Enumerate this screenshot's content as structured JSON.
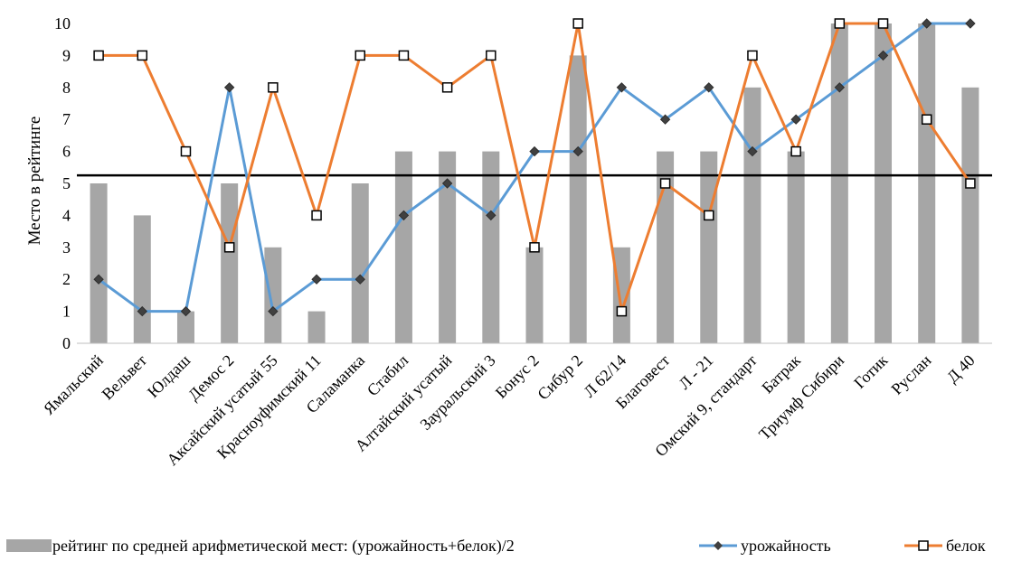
{
  "chart_data": {
    "type": "bar+line",
    "ylabel": "Место в рейтинге",
    "ylim": [
      0,
      10
    ],
    "yticks": [
      "0",
      "1",
      "2",
      "3",
      "4",
      "5",
      "6",
      "7",
      "8",
      "9",
      "10"
    ],
    "categories": [
      "Ямальский",
      "Вельвет",
      "Юлдаш",
      "Демос 2",
      "Аксайский усатый 55",
      "Красноуфимский 11",
      "Саламанка",
      "Стабил",
      "Алтайский усатый",
      "Зауральский 3",
      "Бонус 2",
      "Сибур 2",
      "Л 62/14",
      "Благовест",
      "Л - 21",
      "Омский 9, стандарт",
      "Батрак",
      "Триумф Сибири",
      "Готик",
      "Руслан",
      "Д 40"
    ],
    "series": [
      {
        "name": "рейтинг по средней арифметической мест: (урожайность+белок)/2",
        "type": "bar",
        "color": "#a6a6a6",
        "values": [
          5,
          4,
          1,
          5,
          3,
          1,
          5,
          6,
          6,
          6,
          3,
          9,
          3,
          6,
          6,
          8,
          6,
          10,
          10,
          10,
          8
        ]
      },
      {
        "name": "урожайность",
        "type": "line",
        "color": "#5b9bd5",
        "marker": "diamond",
        "values": [
          2,
          1,
          1,
          8,
          1,
          2,
          2,
          4,
          5,
          4,
          6,
          6,
          8,
          7,
          8,
          6,
          7,
          8,
          9,
          10,
          10
        ]
      },
      {
        "name": "белок",
        "type": "line",
        "color": "#ed7d31",
        "marker": "square",
        "values": [
          9,
          9,
          6,
          3,
          8,
          4,
          9,
          9,
          8,
          9,
          3,
          10,
          1,
          5,
          4,
          9,
          6,
          10,
          10,
          7,
          5
        ]
      }
    ],
    "reference_line": {
      "value": 5.25,
      "color": "#000000"
    },
    "legend_position": "bottom",
    "grid": false
  }
}
